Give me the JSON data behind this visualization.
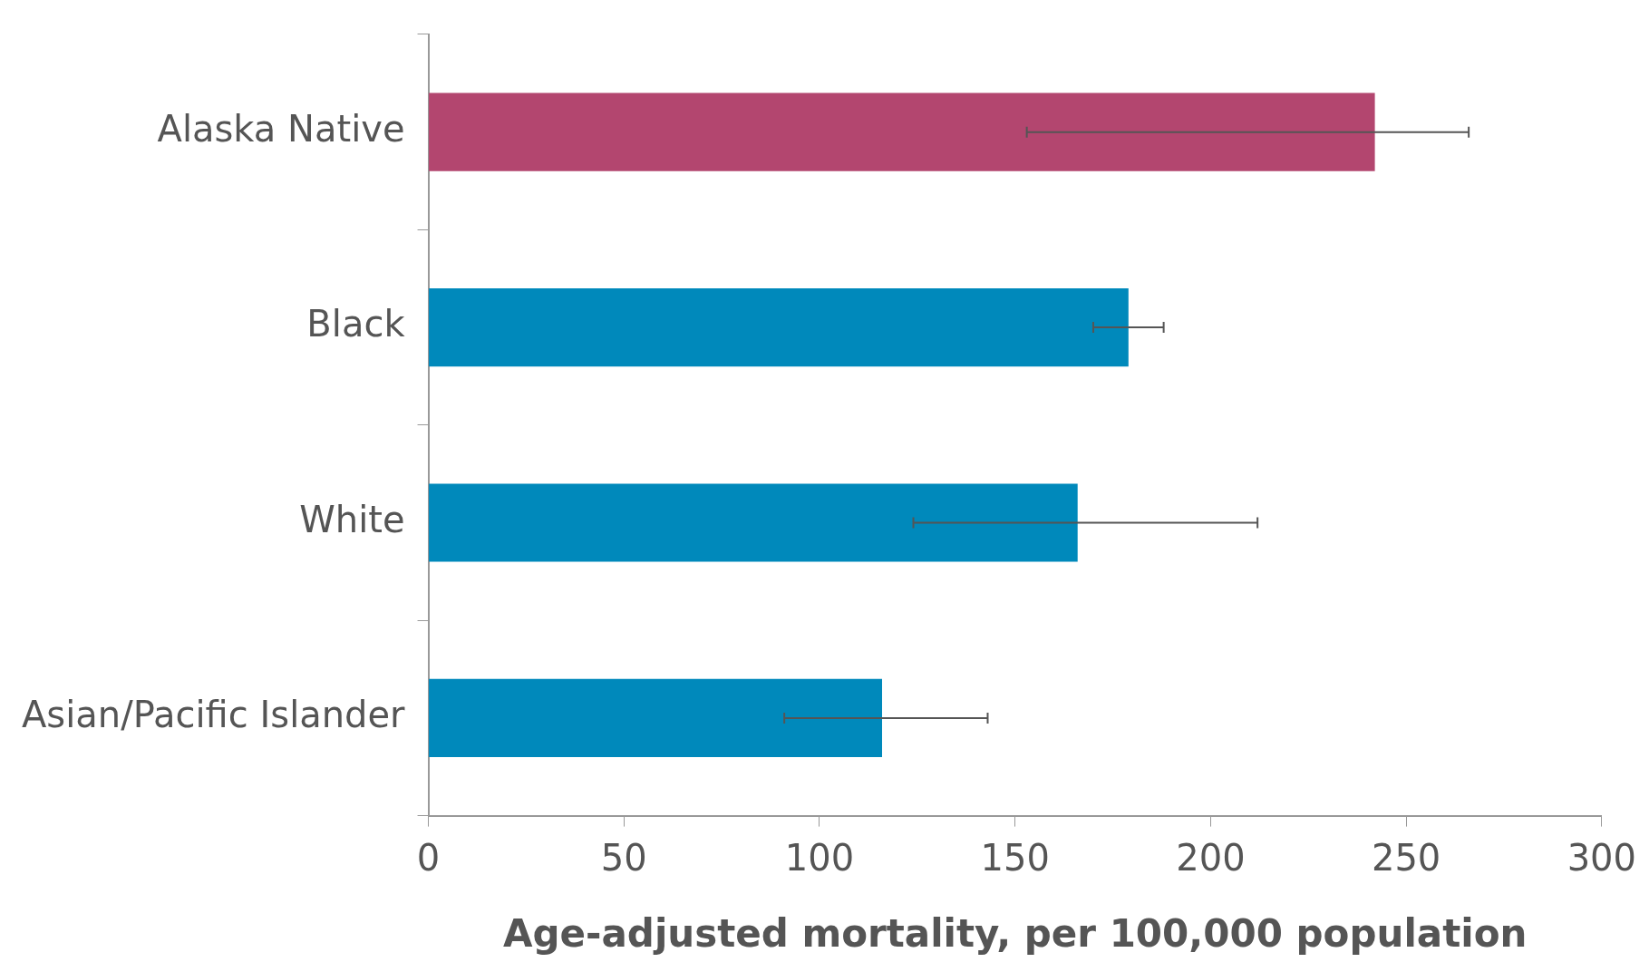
{
  "chart_data": {
    "type": "bar",
    "orientation": "horizontal",
    "xlabel": "Age-adjusted mortality, per 100,000 population",
    "categories": [
      "Alaska Native",
      "Black",
      "White",
      "Asian/Pacific Islander"
    ],
    "values": [
      242,
      179,
      166,
      116
    ],
    "colors": [
      "#b3466f",
      "#0089bb",
      "#0089bb",
      "#0089bb"
    ],
    "errors": [
      [
        153,
        266
      ],
      [
        170,
        188
      ],
      [
        124,
        212
      ],
      [
        91,
        143
      ]
    ],
    "xlim": [
      0,
      300
    ],
    "xticks": [
      0,
      50,
      100,
      150,
      200,
      250,
      300
    ],
    "grid": false,
    "legend": false
  }
}
